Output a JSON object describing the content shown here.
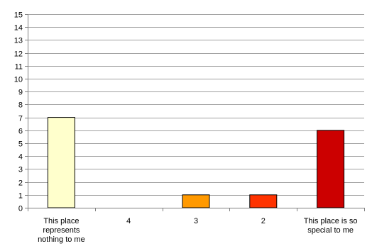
{
  "chart_data": {
    "type": "bar",
    "categories": [
      [
        "This place",
        "represents",
        "nothing to me"
      ],
      [
        "4"
      ],
      [
        "3"
      ],
      [
        "2"
      ],
      [
        "This place is so",
        "special to me"
      ]
    ],
    "values": [
      7,
      0,
      1,
      1,
      6
    ],
    "bar_colors": [
      "#ffffcc",
      "#ffcc66",
      "#ff9900",
      "#ff3300",
      "#cc0000"
    ],
    "ylim": [
      0,
      15
    ],
    "yticks": [
      0,
      1,
      2,
      3,
      4,
      5,
      6,
      7,
      8,
      9,
      10,
      11,
      12,
      13,
      14,
      15
    ],
    "grid": true,
    "gridline_color": "#a0a0a0",
    "title": "",
    "xlabel": "",
    "ylabel": ""
  }
}
